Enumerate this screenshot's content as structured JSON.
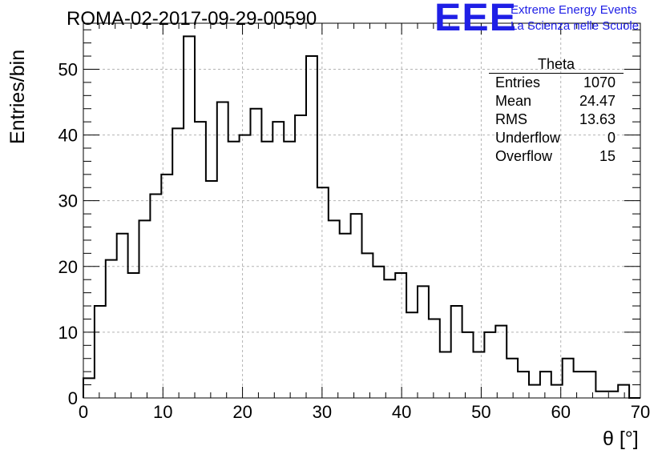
{
  "run_title": "ROMA-02-2017-09-29-00590",
  "logo": {
    "mark": "EEE",
    "line1": "Extreme Energy Events",
    "line2": "La Scienza nelle Scuole",
    "color": "#1f1fe6"
  },
  "stats_box": {
    "title": "Theta",
    "rows": [
      {
        "label": "Entries",
        "value": "1070"
      },
      {
        "label": "Mean",
        "value": "24.47"
      },
      {
        "label": "RMS",
        "value": "13.63"
      },
      {
        "label": "Underflow",
        "value": "0"
      },
      {
        "label": "Overflow",
        "value": "15"
      }
    ]
  },
  "chart_data": {
    "type": "bar",
    "subtype": "step-histogram",
    "title": "ROMA-02-2017-09-29-00590",
    "xlabel": "θ [°]",
    "ylabel": "Entries/bin",
    "xlim": [
      0,
      70
    ],
    "ylim": [
      0,
      57
    ],
    "bin_width": 1.4,
    "x_ticks": [
      0,
      10,
      20,
      30,
      40,
      50,
      60,
      70
    ],
    "y_ticks": [
      0,
      10,
      20,
      30,
      40,
      50
    ],
    "grid": true,
    "values": [
      3,
      14,
      21,
      25,
      19,
      27,
      31,
      34,
      41,
      55,
      42,
      33,
      45,
      39,
      40,
      44,
      39,
      42,
      39,
      43,
      52,
      32,
      27,
      25,
      28,
      22,
      20,
      18,
      19,
      13,
      17,
      12,
      7,
      14,
      10,
      7,
      10,
      11,
      6,
      4,
      2,
      4,
      2,
      6,
      4,
      4,
      1,
      1,
      2,
      0
    ],
    "line_color": "#000000"
  }
}
